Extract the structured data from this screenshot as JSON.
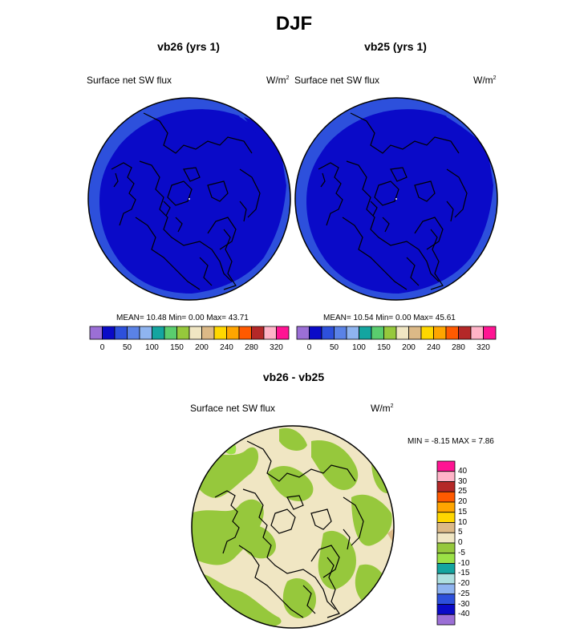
{
  "title": "DJF",
  "palette": {
    "colors": [
      "#9b6fd6",
      "#0a0ac8",
      "#2d50dc",
      "#5a82e6",
      "#8fb4f0",
      "#14a5a0",
      "#5acd6e",
      "#96c83c",
      "#f0e6c3",
      "#dcb987",
      "#ffd700",
      "#ffa500",
      "#ff5a00",
      "#b42828",
      "#ffb4c8",
      "#ff1493"
    ],
    "ocean": "#0a0ac8",
    "band": "#2d50dc",
    "beige": "#f0e6c3",
    "green": "#96c83c",
    "brown": "#dcb987",
    "bright_green": "#9be146"
  },
  "panels": [
    {
      "title": "vb26 (yrs 1)",
      "left_label": "Surface net SW flux",
      "units_base": "W/m",
      "units_exp": "2",
      "stats": "MEAN=  10.48  Min=   0.00  Max=  43.71",
      "colorbar_ticks": [
        "0",
        "50",
        "100",
        "150",
        "200",
        "240",
        "280",
        "320"
      ]
    },
    {
      "title": "vb25 (yrs 1)",
      "left_label": "Surface net SW flux",
      "units_base": "W/m",
      "units_exp": "2",
      "stats": "MEAN=  10.54  Min=   0.00  Max=  45.61",
      "colorbar_ticks": [
        "0",
        "50",
        "100",
        "150",
        "200",
        "240",
        "280",
        "320"
      ]
    }
  ],
  "diff": {
    "title": "vb26 - vb25",
    "left_label": "Surface net SW flux",
    "units_base": "W/m",
    "units_exp": "2",
    "minmax": "MIN =  -8.15 MAX =   7.86",
    "colorbar_labels": [
      "40",
      "30",
      "25",
      "20",
      "15",
      "10",
      "5",
      "0",
      "-5",
      "-10",
      "-15",
      "-20",
      "-25",
      "-30",
      "-40"
    ],
    "colorbar_colors": [
      "#ff1493",
      "#ffb4c8",
      "#b42828",
      "#ff5a00",
      "#ffa500",
      "#ffd700",
      "#dcb987",
      "#f0e6c3",
      "#96c83c",
      "#9be146",
      "#14a5a0",
      "#aee0e0",
      "#8fb4f0",
      "#2d50dc",
      "#0a0ac8",
      "#9b6fd6"
    ]
  },
  "chart_data": [
    {
      "type": "heatmap",
      "title": "vb26 (yrs 1)",
      "variable": "Surface net SW flux",
      "units": "W/m2",
      "projection": "north polar stereographic",
      "mean": 10.48,
      "min": 0.0,
      "max": 43.71,
      "levels": [
        0,
        25,
        50,
        75,
        100,
        125,
        150,
        175,
        200,
        220,
        240,
        260,
        280,
        300,
        320
      ]
    },
    {
      "type": "heatmap",
      "title": "vb25 (yrs 1)",
      "variable": "Surface net SW flux",
      "units": "W/m2",
      "projection": "north polar stereographic",
      "mean": 10.54,
      "min": 0.0,
      "max": 45.61,
      "levels": [
        0,
        25,
        50,
        75,
        100,
        125,
        150,
        175,
        200,
        220,
        240,
        260,
        280,
        300,
        320
      ]
    },
    {
      "type": "heatmap",
      "title": "vb26 - vb25",
      "variable": "Surface net SW flux",
      "units": "W/m2",
      "projection": "north polar stereographic",
      "min": -8.15,
      "max": 7.86,
      "levels": [
        -40,
        -30,
        -25,
        -20,
        -15,
        -10,
        -5,
        0,
        5,
        10,
        15,
        20,
        25,
        30,
        40
      ]
    }
  ]
}
